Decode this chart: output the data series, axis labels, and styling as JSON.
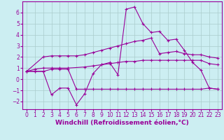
{
  "background_color": "#cceef2",
  "grid_color": "#aacccc",
  "line_color": "#990099",
  "xlabel": "Windchill (Refroidissement éolien,°C)",
  "xlabel_fontsize": 6.5,
  "tick_fontsize": 5.5,
  "xlim": [
    -0.5,
    23.5
  ],
  "ylim": [
    -2.7,
    7.0
  ],
  "yticks": [
    -2,
    -1,
    0,
    1,
    2,
    3,
    4,
    5,
    6
  ],
  "xticks": [
    0,
    1,
    2,
    3,
    4,
    5,
    6,
    7,
    8,
    9,
    10,
    11,
    12,
    13,
    14,
    15,
    16,
    17,
    18,
    19,
    20,
    21,
    22,
    23
  ],
  "series1_x": [
    0,
    2,
    3,
    4,
    5,
    6,
    7,
    8,
    9,
    10,
    11,
    12,
    13,
    14,
    15,
    16,
    17,
    18,
    19,
    20,
    21,
    22,
    23
  ],
  "series1_y": [
    0.7,
    2.0,
    2.1,
    2.1,
    2.1,
    2.1,
    2.2,
    2.4,
    2.6,
    2.8,
    3.0,
    3.2,
    3.4,
    3.5,
    3.7,
    2.3,
    2.4,
    2.5,
    2.3,
    2.2,
    2.2,
    2.0,
    1.9
  ],
  "series2_x": [
    0,
    1,
    2,
    3,
    4,
    5,
    6,
    7,
    8,
    9,
    10,
    11,
    12,
    13,
    14,
    15,
    16,
    17,
    18,
    19,
    20,
    21,
    22,
    23
  ],
  "series2_y": [
    0.7,
    0.7,
    0.7,
    -1.4,
    -0.8,
    -0.8,
    -2.3,
    -1.3,
    0.5,
    1.3,
    1.5,
    0.4,
    6.3,
    6.5,
    5.0,
    4.2,
    4.3,
    3.5,
    3.6,
    2.6,
    1.5,
    0.8,
    -0.8,
    -0.9
  ],
  "series3_x": [
    0,
    1,
    2,
    3,
    4,
    5,
    7,
    8,
    9,
    10,
    11,
    12,
    13,
    14,
    15,
    16,
    17,
    18,
    19,
    20,
    21,
    22,
    23
  ],
  "series3_y": [
    0.7,
    0.9,
    1.0,
    1.0,
    1.0,
    1.0,
    1.1,
    1.2,
    1.3,
    1.4,
    1.5,
    1.6,
    1.6,
    1.7,
    1.7,
    1.7,
    1.7,
    1.7,
    1.7,
    1.7,
    1.7,
    1.4,
    1.3
  ],
  "series4_x": [
    0,
    1,
    2,
    3,
    4,
    5,
    6,
    7,
    8,
    9,
    10,
    11,
    12,
    13,
    14,
    15,
    16,
    17,
    18,
    19,
    20,
    21,
    22,
    23
  ],
  "series4_y": [
    0.7,
    0.7,
    0.7,
    0.9,
    0.9,
    0.9,
    -0.9,
    -0.9,
    -0.9,
    -0.9,
    -0.9,
    -0.9,
    -0.9,
    -0.9,
    -0.9,
    -0.9,
    -0.9,
    -0.9,
    -0.9,
    -0.9,
    -0.9,
    -0.9,
    -0.8,
    -0.9
  ]
}
